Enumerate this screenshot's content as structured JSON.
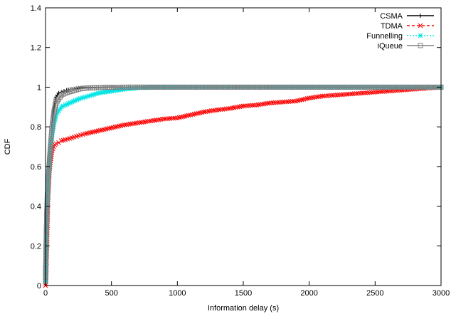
{
  "chart_data": {
    "type": "line",
    "title": "",
    "xlabel": "Information delay (s)",
    "ylabel": "CDF",
    "xlim": [
      0,
      3000
    ],
    "ylim": [
      0,
      1.4
    ],
    "xticks": [
      0,
      500,
      1000,
      1500,
      2000,
      2500,
      3000
    ],
    "yticks": [
      0,
      0.2,
      0.4,
      0.6,
      0.8,
      1,
      1.2,
      1.4
    ],
    "grid": false,
    "legend_position": "top-right",
    "series": [
      {
        "name": "CSMA",
        "color": "#000000",
        "marker": "plus",
        "line": "solid",
        "x": [
          0,
          5,
          10,
          20,
          30,
          40,
          50,
          60,
          70,
          80,
          90,
          100,
          120,
          140,
          160,
          200,
          250,
          300,
          400,
          500,
          700,
          1000,
          3000
        ],
        "y": [
          0.02,
          0.25,
          0.45,
          0.55,
          0.65,
          0.74,
          0.82,
          0.88,
          0.92,
          0.95,
          0.96,
          0.97,
          0.975,
          0.98,
          0.985,
          0.99,
          0.995,
          0.998,
          0.999,
          1.0,
          1.0,
          1.0,
          1.0
        ]
      },
      {
        "name": "TDMA",
        "color": "#ff0000",
        "marker": "x",
        "line": "dashed",
        "x": [
          0,
          5,
          10,
          20,
          30,
          40,
          50,
          60,
          70,
          80,
          100,
          120,
          150,
          200,
          250,
          300,
          400,
          500,
          600,
          700,
          800,
          900,
          1000,
          1100,
          1200,
          1300,
          1400,
          1500,
          1600,
          1700,
          1800,
          1900,
          2000,
          2100,
          2200,
          2300,
          2400,
          2500,
          2600,
          2700,
          2800,
          2900,
          3000
        ],
        "y": [
          0.0,
          0.05,
          0.2,
          0.45,
          0.58,
          0.64,
          0.68,
          0.7,
          0.71,
          0.715,
          0.72,
          0.73,
          0.735,
          0.745,
          0.755,
          0.765,
          0.78,
          0.795,
          0.81,
          0.82,
          0.83,
          0.84,
          0.845,
          0.86,
          0.875,
          0.885,
          0.893,
          0.905,
          0.91,
          0.92,
          0.925,
          0.93,
          0.945,
          0.955,
          0.96,
          0.965,
          0.97,
          0.975,
          0.98,
          0.985,
          0.99,
          0.995,
          1.0
        ]
      },
      {
        "name": "Funnelling",
        "color": "#00e5e5",
        "marker": "star",
        "line": "dotted",
        "x": [
          0,
          5,
          10,
          20,
          30,
          40,
          50,
          60,
          70,
          80,
          100,
          120,
          150,
          200,
          250,
          300,
          350,
          400,
          450,
          500,
          550,
          600,
          650,
          700,
          800,
          1000,
          3000
        ],
        "y": [
          0.02,
          0.2,
          0.38,
          0.55,
          0.65,
          0.72,
          0.76,
          0.8,
          0.83,
          0.86,
          0.88,
          0.9,
          0.91,
          0.925,
          0.94,
          0.95,
          0.96,
          0.97,
          0.975,
          0.98,
          0.985,
          0.99,
          0.993,
          0.996,
          0.998,
          1.0,
          1.0
        ]
      },
      {
        "name": "iQueue",
        "color": "#808080",
        "marker": "square",
        "line": "solid",
        "x": [
          0,
          5,
          10,
          20,
          30,
          40,
          50,
          60,
          70,
          80,
          100,
          120,
          150,
          200,
          250,
          300,
          400,
          500,
          600,
          700,
          1000,
          3000
        ],
        "y": [
          0.02,
          0.22,
          0.38,
          0.52,
          0.63,
          0.72,
          0.8,
          0.85,
          0.89,
          0.92,
          0.94,
          0.96,
          0.97,
          0.98,
          0.99,
          0.995,
          0.998,
          0.999,
          1.0,
          1.0,
          1.0,
          1.0
        ]
      }
    ]
  }
}
